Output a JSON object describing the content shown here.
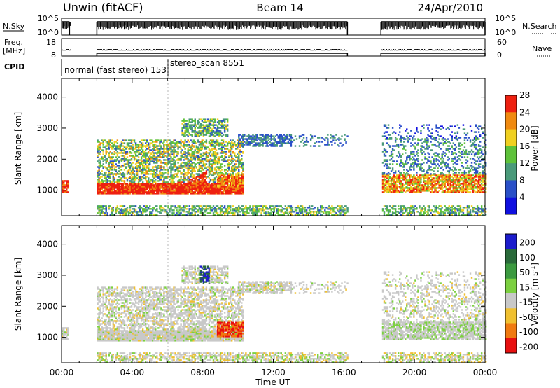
{
  "header": {
    "station": "Unwin (fitACF)",
    "beam": "Beam 14",
    "date": "24/Apr/2010"
  },
  "strips": {
    "nsky_label": "N.Sky",
    "nsky_ticks": [
      "10^5",
      "10^0"
    ],
    "nsearch_label": "N.Search",
    "nsearch_ticks": [
      "10^5",
      "10^0"
    ],
    "freq_label_1": "Freq.",
    "freq_label_2": "[MHz]",
    "freq_ticks": [
      "18",
      "8"
    ],
    "nave_label": "Nave",
    "nave_ticks": [
      "60",
      "0"
    ],
    "cpid_label": "CPID",
    "cpid_entries": [
      {
        "text": "normal (fast stereo) 153",
        "start_hour": 0.1
      },
      {
        "text": "stereo_scan 8551",
        "start_hour": 6.0
      }
    ],
    "data_gap_hours": [
      [
        0.5,
        2.0
      ],
      [
        16.2,
        18.1
      ]
    ]
  },
  "chart_data": [
    {
      "name": "power",
      "type": "heatmap",
      "ylabel": "Slant Range [km]",
      "x_range_hours": [
        0,
        24
      ],
      "ylim_km": [
        180,
        4600
      ],
      "yticks": [
        1000,
        2000,
        3000,
        4000
      ],
      "colorbar": {
        "label": "Power [dB]",
        "ticks": [
          "4",
          "8",
          "12",
          "16",
          "20",
          "24",
          "28"
        ],
        "colors": [
          "#1010e0",
          "#2a50c8",
          "#4a9a7a",
          "#5ec23a",
          "#f0d020",
          "#f08a10",
          "#ee2010"
        ]
      }
    },
    {
      "name": "velocity",
      "type": "heatmap",
      "ylabel": "Slant Range [km]",
      "xlabel": "Time UT",
      "x_range_hours": [
        0,
        24
      ],
      "ylim_km": [
        180,
        4600
      ],
      "yticks": [
        1000,
        2000,
        3000,
        4000
      ],
      "xticks": [
        "00:00",
        "04:00",
        "08:00",
        "12:00",
        "16:00",
        "20:00",
        "00:00"
      ],
      "colorbar": {
        "label": "Velocity [m s",
        "label_sup": "-1",
        "label_end": "]",
        "ticks": [
          "200",
          "100",
          "50",
          "15",
          "-15",
          "-50",
          "-100",
          "-200"
        ],
        "colors": [
          "#1c1ccc",
          "#2a6a3a",
          "#3c9a40",
          "#7cd040",
          "#c8c8c8",
          "#f0c030",
          "#f07a10",
          "#e81010"
        ]
      }
    }
  ]
}
